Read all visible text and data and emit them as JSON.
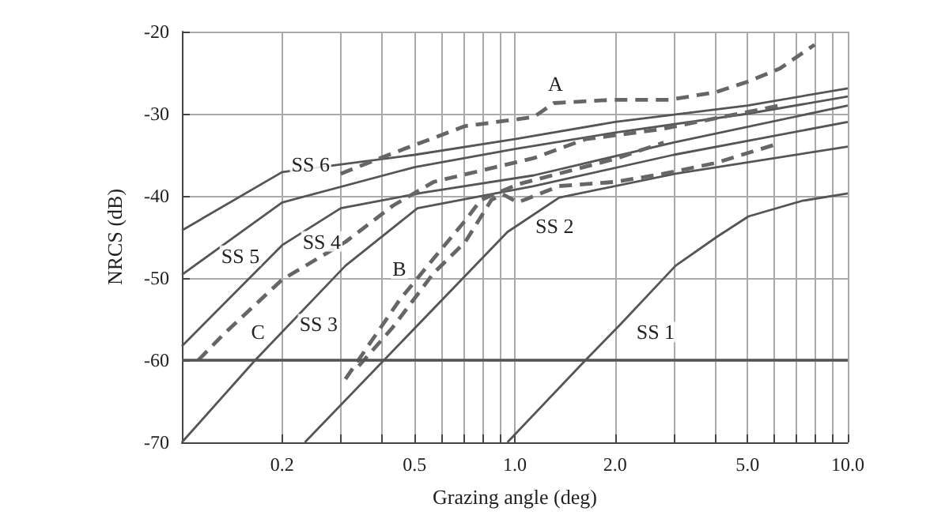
{
  "chart_data": {
    "type": "line",
    "xlabel": "Grazing angle (deg)",
    "ylabel": "NRCS (dB)",
    "log": "x",
    "grid": true,
    "marker": "none",
    "xlim": [
      0.1,
      10
    ],
    "ylim": [
      -70,
      -20
    ],
    "xticks": [
      {
        "value": 0.1,
        "label": null
      },
      {
        "value": 0.2,
        "label": "0.2"
      },
      {
        "value": 0.3,
        "label": null
      },
      {
        "value": 0.4,
        "label": null
      },
      {
        "value": 0.5,
        "label": "0.5"
      },
      {
        "value": 0.6,
        "label": null
      },
      {
        "value": 0.7,
        "label": null
      },
      {
        "value": 0.8,
        "label": null
      },
      {
        "value": 0.9,
        "label": null
      },
      {
        "value": 1,
        "label": "1.0"
      },
      {
        "value": 2,
        "label": "2.0"
      },
      {
        "value": 3,
        "label": null
      },
      {
        "value": 4,
        "label": null
      },
      {
        "value": 5,
        "label": "5.0"
      },
      {
        "value": 6,
        "label": null
      },
      {
        "value": 7,
        "label": null
      },
      {
        "value": 8,
        "label": null
      },
      {
        "value": 9,
        "label": null
      },
      {
        "value": 10,
        "label": "10.0"
      }
    ],
    "yticks": [
      -70,
      -60,
      -50,
      -40,
      -30,
      -20
    ],
    "ref_lines": [
      {
        "axis": "y",
        "value": -60,
        "color": "#555555"
      }
    ],
    "series": [
      {
        "name": "SS 6",
        "color": "#555555",
        "line_style": "solid",
        "x": [
          0.1,
          0.2,
          0.5,
          1,
          2,
          5,
          10
        ],
        "values": [
          -44.2,
          -37.1,
          -35,
          -33.1,
          -31,
          -29,
          -26.9
        ]
      },
      {
        "name": "SS 5",
        "color": "#555555",
        "line_style": "solid",
        "x": [
          0.1,
          0.2,
          0.5,
          1,
          2,
          5,
          10
        ],
        "values": [
          -49.6,
          -40.8,
          -36.5,
          -34.3,
          -32.3,
          -30,
          -27.9
        ]
      },
      {
        "name": "SS 4",
        "color": "#555555",
        "line_style": "solid",
        "x": [
          0.1,
          0.2,
          0.3,
          0.53,
          1.14,
          3,
          10
        ],
        "values": [
          -58.3,
          -46,
          -41.5,
          -39.6,
          -37.5,
          -33.5,
          -29
        ]
      },
      {
        "name": "SS 3",
        "color": "#555555",
        "line_style": "solid",
        "x": [
          0.1,
          0.166,
          0.31,
          0.51,
          1.14,
          3,
          10
        ],
        "values": [
          -70,
          -60,
          -48.5,
          -41.5,
          -38.8,
          -35,
          -31
        ]
      },
      {
        "name": "SS 2",
        "color": "#555555",
        "line_style": "solid",
        "x": [
          0.234,
          0.95,
          1.36,
          3.04,
          10
        ],
        "values": [
          -70,
          -44.4,
          -40.2,
          -37.3,
          -34
        ]
      },
      {
        "name": "SS 1",
        "color": "#555555",
        "line_style": "solid",
        "x": [
          0.95,
          1.63,
          2.08,
          3.04,
          4.04,
          5.03,
          7.3,
          10
        ],
        "values": [
          -70,
          -60,
          -55.6,
          -48.5,
          -45,
          -42.5,
          -40.6,
          -39.7
        ]
      },
      {
        "name": "A",
        "color": "#666666",
        "line_style": "dashed",
        "x": [
          0.3,
          0.43,
          0.71,
          1.14,
          1.31,
          1.97,
          2.9,
          4,
          5,
          6.25,
          7.95
        ],
        "values": [
          -37.3,
          -34.8,
          -31.5,
          -30.4,
          -28.7,
          -28.3,
          -28.3,
          -27.4,
          -26.1,
          -24.5,
          -21.6
        ]
      },
      {
        "name": "B",
        "color": "#666666",
        "line_style": "dashed",
        "x": [
          0.31,
          0.45,
          0.59,
          0.71,
          0.79,
          1.02,
          2,
          2.8
        ],
        "values": [
          -62.3,
          -52.7,
          -46.9,
          -43,
          -40.5,
          -38.6,
          -35.5,
          -33.5
        ]
      },
      {
        "color": "#666666",
        "line_style": "dashed",
        "x": [
          0.34,
          0.43,
          0.57,
          0.71,
          0.85,
          0.92,
          1.02,
          1.36,
          2,
          2.8,
          4,
          6
        ],
        "values": [
          -60.7,
          -56,
          -49.4,
          -45.6,
          -40.5,
          -39.8,
          -40.8,
          -38.8,
          -38.3,
          -37.3,
          -36,
          -33.8
        ]
      },
      {
        "name": "C",
        "color": "#666666",
        "line_style": "dashed",
        "x": [
          0.112,
          0.133,
          0.2,
          0.31,
          0.43,
          0.57,
          1.14,
          1.63,
          2.73,
          4.7,
          6.25
        ],
        "values": [
          -60,
          -56.9,
          -50.2,
          -45.6,
          -41.2,
          -38.3,
          -35.4,
          -33.1,
          -31.9,
          -30,
          -29
        ]
      }
    ]
  }
}
